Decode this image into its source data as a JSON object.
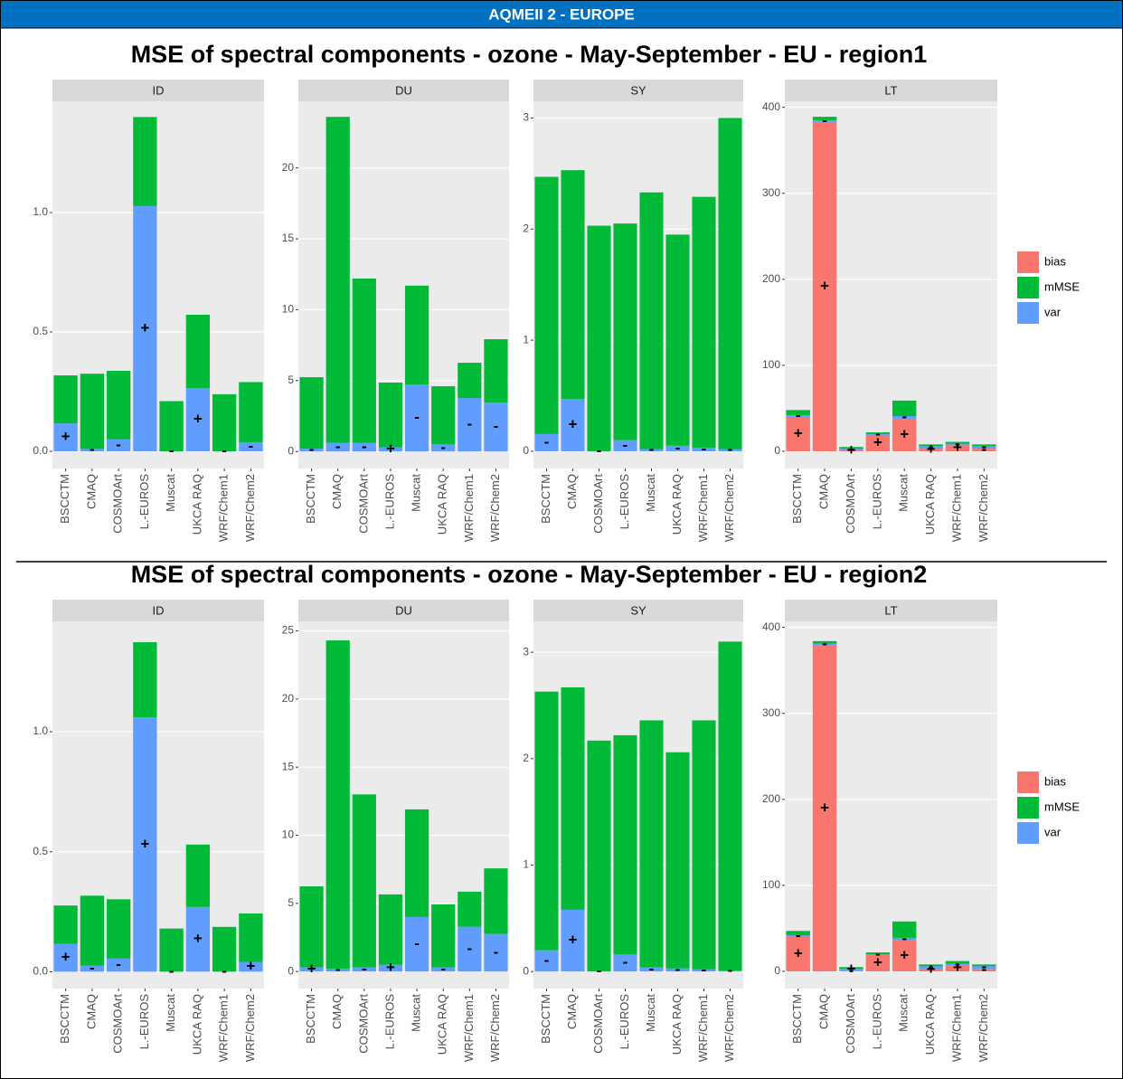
{
  "header": "AQMEII 2 - EUROPE",
  "chart_data": [
    {
      "type": "bar",
      "stacked": true,
      "title": "MSE of spectral components -  ozone - May-September - EU - region1",
      "categories": [
        "BSCCTM",
        "CMAQ",
        "COSMOArt",
        "L.-EUROS",
        "Muscat",
        "UKCA RAQ",
        "WRF/Chem1",
        "WRF/Chem2"
      ],
      "series": [
        {
          "name": "bias",
          "color": "#F8766D"
        },
        {
          "name": "mMSE",
          "color": "#00BA38"
        },
        {
          "name": "var",
          "color": "#619CFF"
        }
      ],
      "legend": "right",
      "grid": true,
      "facets": [
        {
          "name": "ID",
          "ylim": [
            -0.072,
            1.466
          ],
          "yticks": [
            {
              "value": 0,
              "label": "0.0"
            },
            {
              "value": 0.5,
              "label": "0.5"
            },
            {
              "value": 1,
              "label": "1.0"
            }
          ],
          "data": [
            [
              0,
              0,
              0,
              0,
              0,
              0,
              0,
              0
            ],
            [
              0.201,
              0.315,
              0.287,
              0.373,
              0.21,
              0.307,
              0.239,
              0.252
            ],
            [
              0.117,
              0.01,
              0.05,
              1.027,
              0,
              0.265,
              0,
              0.038
            ]
          ],
          "var_signs": [
            "+",
            "-",
            "-",
            "+",
            "-",
            "+",
            "-",
            "-"
          ]
        },
        {
          "name": "DU",
          "ylim": [
            -1.2,
            24.7
          ],
          "yticks": [
            0,
            5,
            10,
            15,
            20
          ],
          "data": [
            [
              0,
              0,
              0,
              0,
              0,
              0,
              0,
              0
            ],
            [
              5.04,
              23.0,
              11.6,
              4.56,
              6.97,
              4.1,
              2.49,
              4.47
            ],
            [
              0.2,
              0.6,
              0.6,
              0.3,
              4.73,
              0.5,
              3.77,
              3.45
            ]
          ],
          "var_signs": [
            "-",
            "-",
            "-",
            "+",
            "-",
            "-",
            "-",
            "-"
          ]
        },
        {
          "name": "SY",
          "ylim": [
            -0.155,
            3.15
          ],
          "yticks": [
            0,
            1,
            2,
            3
          ],
          "data": [
            [
              0,
              0,
              0,
              0,
              0,
              0,
              0,
              0
            ],
            [
              2.315,
              2.06,
              2.03,
              1.95,
              2.31,
              1.9,
              2.26,
              2.98
            ],
            [
              0.155,
              0.47,
              0,
              0.1,
              0.02,
              0.05,
              0.03,
              0.02
            ]
          ],
          "var_signs": [
            "-",
            "+",
            "-",
            "-",
            "-",
            "-",
            "-",
            "-"
          ]
        },
        {
          "name": "LT",
          "ylim": [
            -20,
            407
          ],
          "yticks": [
            0,
            100,
            200,
            300,
            400
          ],
          "data": [
            [
              40,
              383,
              1,
              19,
              38,
              3,
              7,
              3
            ],
            [
              6,
              4,
              2,
              2,
              18,
              2,
              2,
              2
            ],
            [
              2,
              2,
              2,
              1,
              3,
              3,
              2,
              3
            ]
          ],
          "bias_signs": [
            "+",
            "+",
            "+",
            "+",
            "+",
            "+",
            "+",
            "-"
          ],
          "var_signs": [
            "-",
            "-",
            "-",
            "-",
            "-",
            "-",
            "-",
            "-"
          ]
        }
      ]
    },
    {
      "type": "bar",
      "stacked": true,
      "title": "MSE of spectral components -  ozone - May-September - EU - region2",
      "categories": [
        "BSCCTM",
        "CMAQ",
        "COSMOArt",
        "L.-EUROS",
        "Muscat",
        "UKCA RAQ",
        "WRF/Chem1",
        "WRF/Chem2"
      ],
      "series": [
        {
          "name": "bias",
          "color": "#F8766D"
        },
        {
          "name": "mMSE",
          "color": "#00BA38"
        },
        {
          "name": "var",
          "color": "#619CFF"
        }
      ],
      "legend": "right",
      "grid": true,
      "facets": [
        {
          "name": "ID",
          "ylim": [
            -0.07,
            1.46
          ],
          "yticks": [
            {
              "value": 0,
              "label": "0.0"
            },
            {
              "value": 0.5,
              "label": "0.5"
            },
            {
              "value": 1,
              "label": "1.0"
            }
          ],
          "data": [
            [
              0,
              0,
              0,
              0,
              0,
              0,
              0,
              0
            ],
            [
              0.16,
              0.292,
              0.247,
              0.313,
              0.18,
              0.26,
              0.187,
              0.203
            ],
            [
              0.116,
              0.025,
              0.055,
              1.06,
              0,
              0.27,
              0,
              0.04
            ]
          ],
          "var_signs": [
            "+",
            "-",
            "-",
            "+",
            "-",
            "+",
            "-",
            "+"
          ]
        },
        {
          "name": "DU",
          "ylim": [
            -1.25,
            25.7
          ],
          "yticks": [
            0,
            5,
            10,
            15,
            20,
            25
          ],
          "data": [
            [
              0,
              0,
              0,
              0,
              0,
              0,
              0,
              0
            ],
            [
              5.95,
              24.1,
              12.7,
              5.16,
              7.9,
              4.63,
              2.57,
              4.81
            ],
            [
              0.3,
              0.2,
              0.3,
              0.5,
              4.0,
              0.3,
              3.29,
              2.76
            ]
          ],
          "var_signs": [
            "+",
            "-",
            "-",
            "+",
            "-",
            "-",
            "-",
            "-"
          ]
        },
        {
          "name": "SY",
          "ylim": [
            -0.16,
            3.29
          ],
          "yticks": [
            0,
            1,
            2,
            3
          ],
          "data": [
            [
              0,
              0,
              0,
              0,
              0,
              0,
              0,
              0
            ],
            [
              2.43,
              2.09,
              2.17,
              2.06,
              2.32,
              2.03,
              2.34,
              3.09
            ],
            [
              0.2,
              0.58,
              0,
              0.16,
              0.04,
              0.03,
              0.02,
              0.01
            ]
          ],
          "var_signs": [
            "-",
            "+",
            "-",
            "-",
            "-",
            "-",
            "-",
            "-"
          ]
        },
        {
          "name": "LT",
          "ylim": [
            -20,
            407
          ],
          "yticks": [
            0,
            100,
            200,
            300,
            400
          ],
          "data": [
            [
              40,
              379,
              1,
              19,
              36,
              3,
              7,
              3
            ],
            [
              5,
              3,
              2,
              2,
              19,
              2,
              3,
              2
            ],
            [
              2,
              2,
              2,
              1,
              3,
              3,
              2,
              3
            ]
          ],
          "bias_signs": [
            "+",
            "+",
            "-",
            "+",
            "+",
            "+",
            "+",
            "-"
          ],
          "var_signs": [
            "-",
            "-",
            "+",
            "-",
            "-",
            "-",
            "-",
            "-"
          ]
        }
      ]
    }
  ]
}
